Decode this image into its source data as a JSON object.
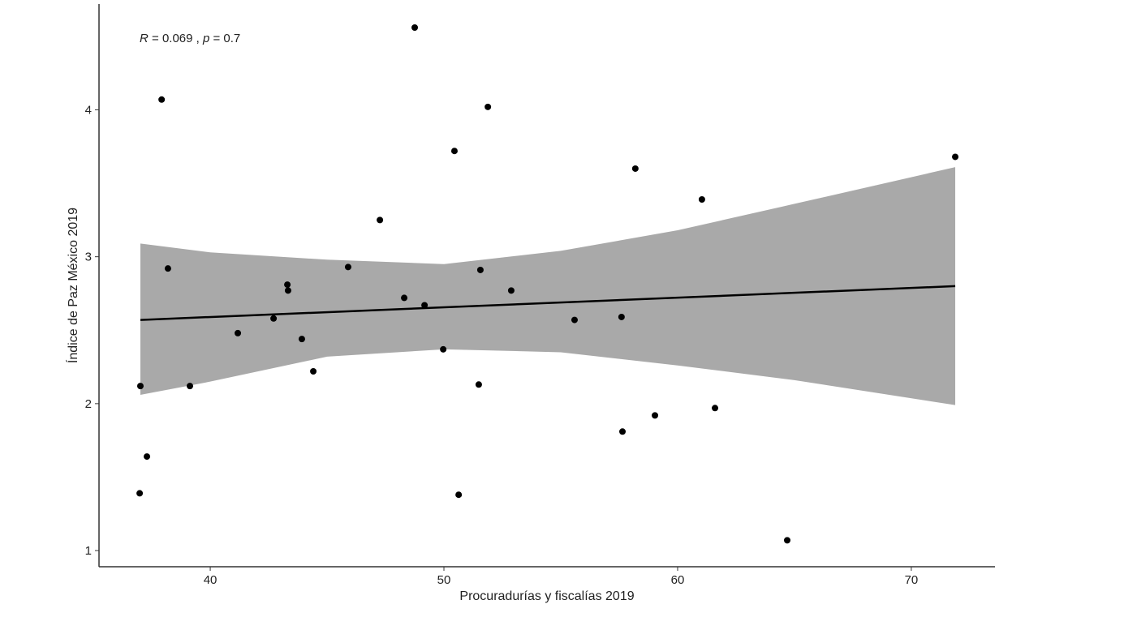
{
  "chart_data": {
    "type": "scatter",
    "x_label": "Procuradurías y fiscalías 2019",
    "y_label": "Índice de Paz México 2019",
    "annotation": [
      "R",
      " = 0.069 , ",
      "p",
      " = 0.7"
    ],
    "xlim": [
      35.24,
      73.58
    ],
    "ylim": [
      0.89,
      4.72
    ],
    "xticks": [
      40,
      50,
      60,
      70
    ],
    "yticks": [
      1,
      2,
      3,
      4
    ],
    "series": [
      {
        "color": "#000000",
        "x": [
          48.75,
          37.92,
          51.88,
          50.45,
          58.19,
          71.88,
          61.04,
          47.26,
          45.9,
          38.19,
          51.56,
          43.3,
          43.33,
          52.88,
          48.3,
          49.17,
          42.71,
          55.59,
          57.6,
          41.18,
          43.92,
          49.97,
          44.41,
          37.01,
          39.13,
          51.49,
          61.6,
          59.03,
          57.64,
          37.29,
          36.98,
          50.63,
          64.69
        ],
        "values": [
          4.56,
          4.07,
          4.02,
          3.72,
          3.6,
          3.68,
          3.39,
          3.25,
          2.93,
          2.92,
          2.91,
          2.81,
          2.77,
          2.77,
          2.72,
          2.67,
          2.58,
          2.57,
          2.59,
          2.48,
          2.44,
          2.37,
          2.22,
          2.12,
          2.12,
          2.13,
          1.97,
          1.92,
          1.81,
          1.64,
          1.39,
          1.38,
          1.07
        ]
      }
    ],
    "fit": {
      "color": "#000000",
      "x": [
        37.01,
        71.88
      ],
      "values": [
        2.57,
        2.8
      ]
    },
    "band": {
      "color": "#a9a9a9",
      "x": [
        37.01,
        40,
        45,
        50,
        55,
        60,
        65,
        71.88
      ],
      "lower": [
        2.06,
        2.15,
        2.32,
        2.37,
        2.35,
        2.26,
        2.16,
        1.99
      ],
      "upper": [
        3.09,
        3.03,
        2.98,
        2.95,
        3.04,
        3.18,
        3.36,
        3.61
      ]
    }
  }
}
